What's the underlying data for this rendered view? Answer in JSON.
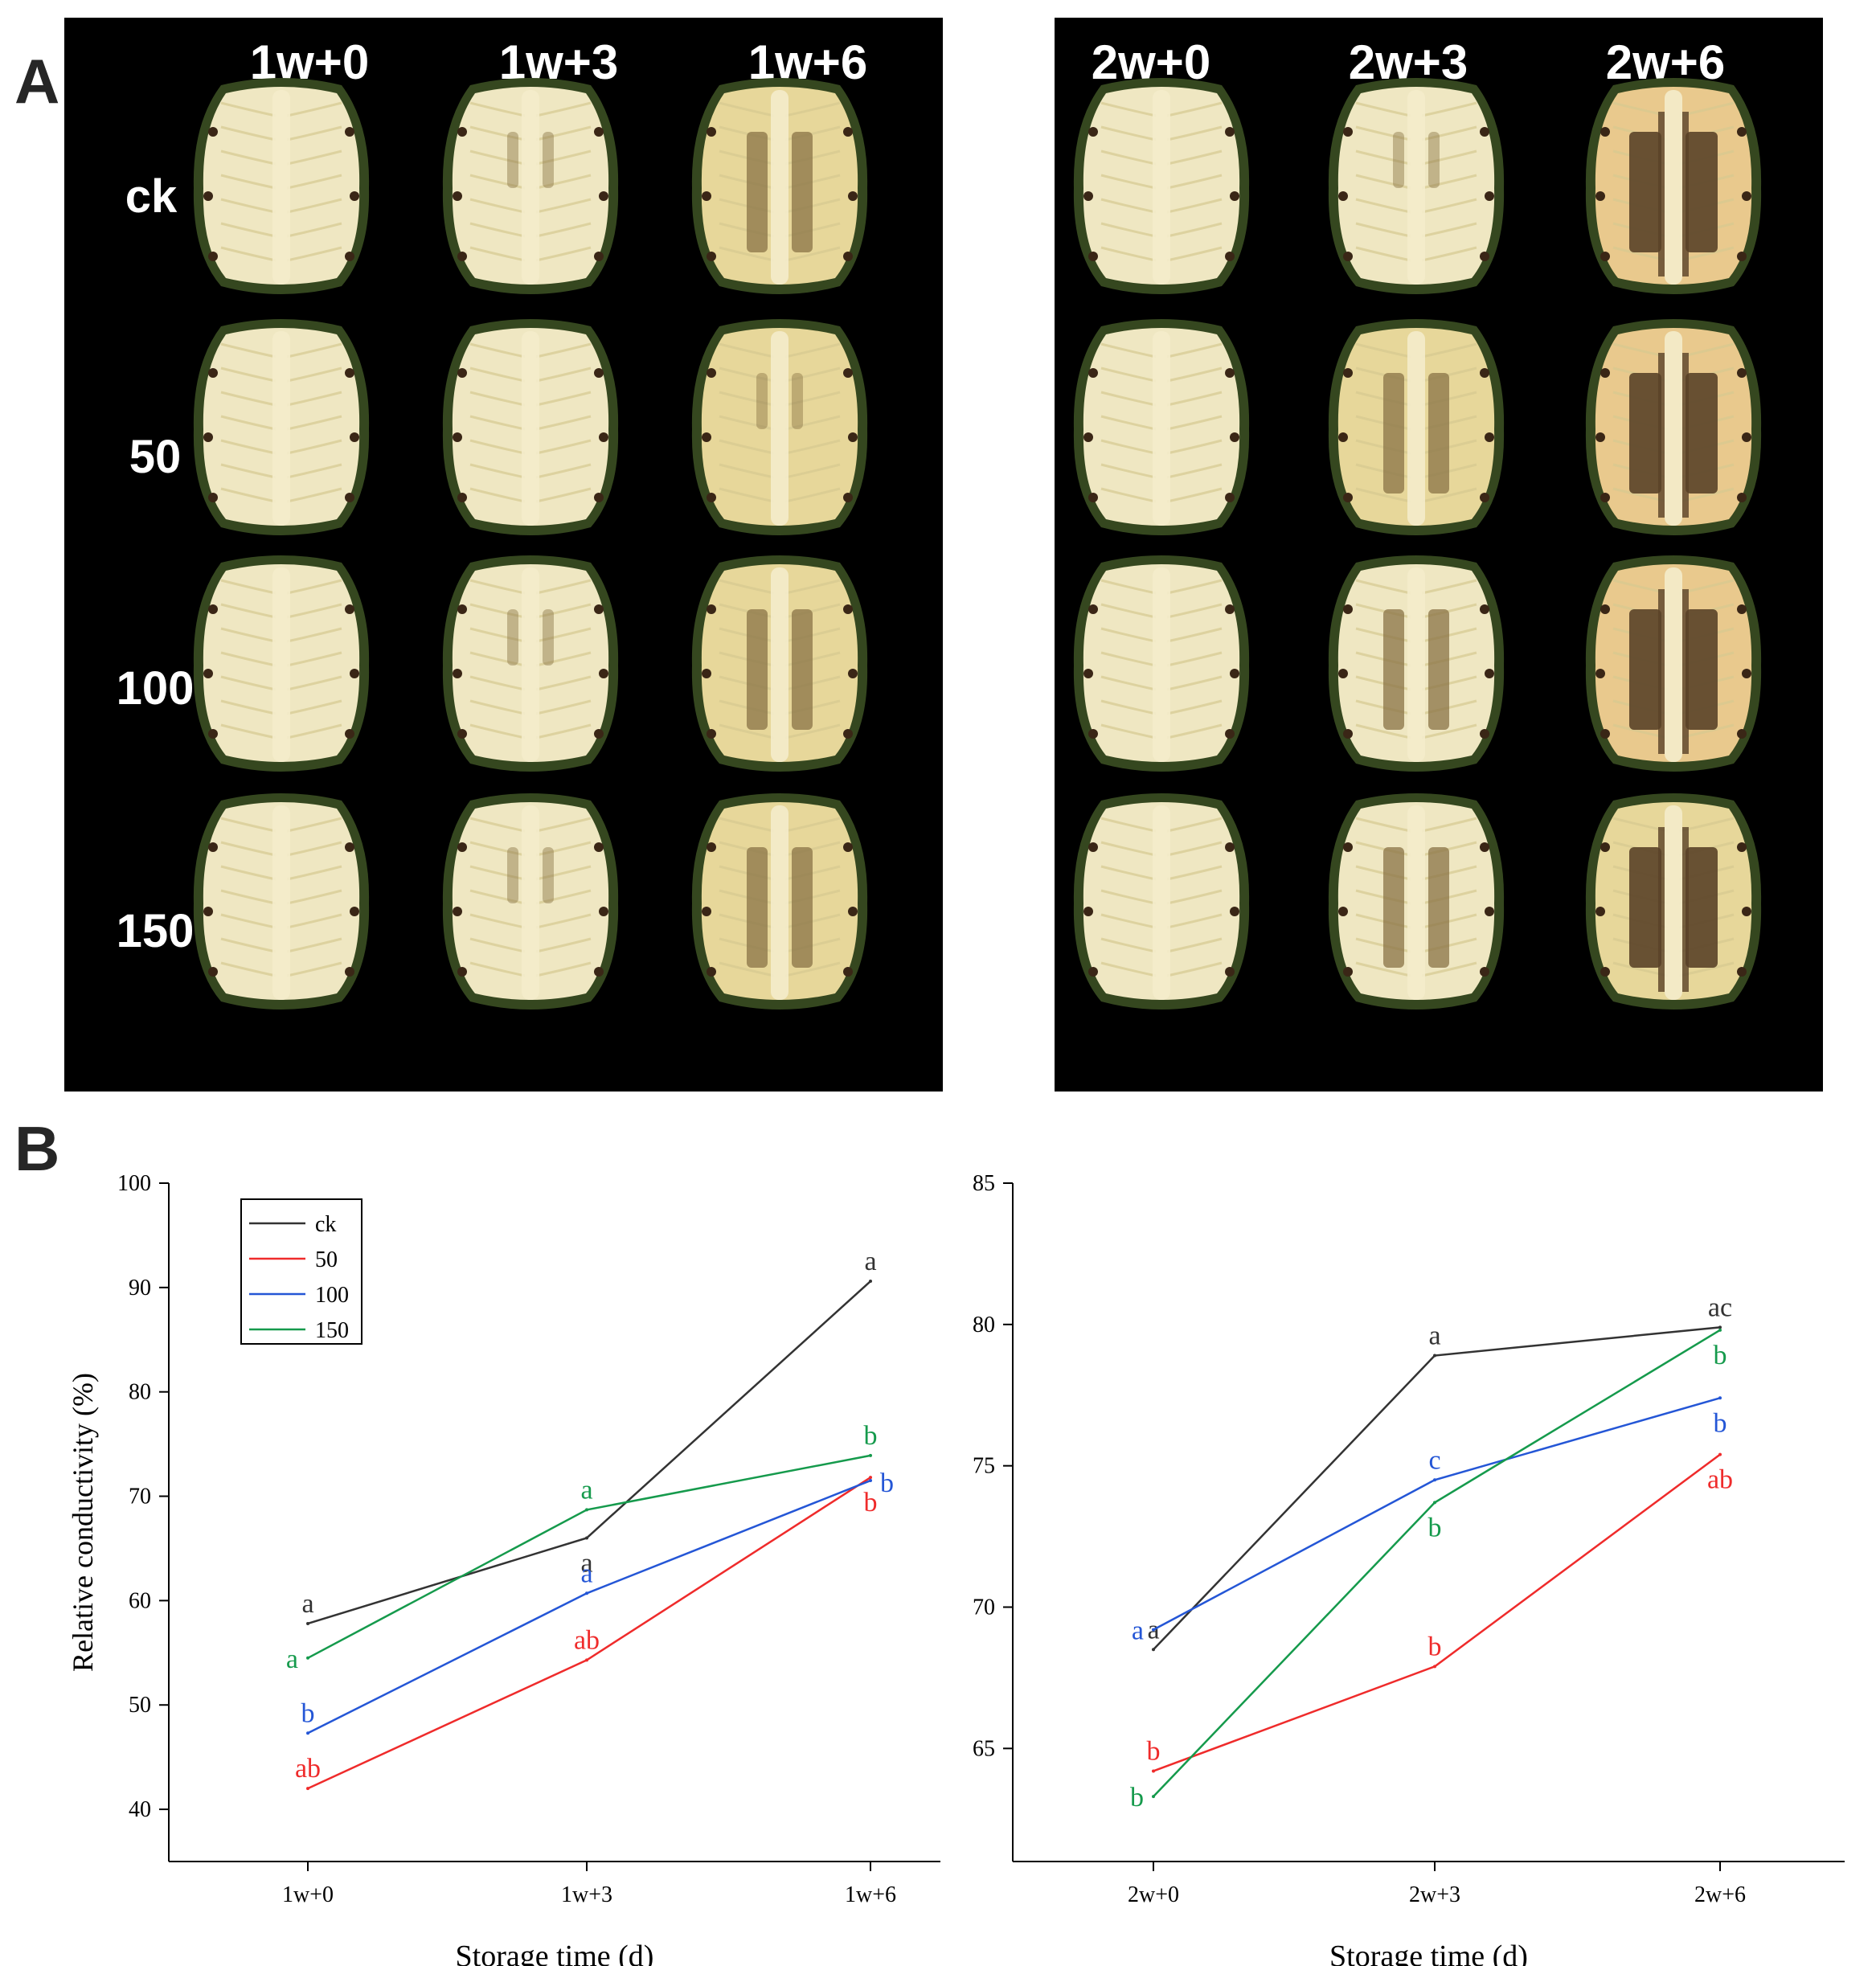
{
  "panel_a": {
    "letter": "A",
    "left_columns": [
      "1w+0",
      "1w+3",
      "1w+6"
    ],
    "right_columns": [
      "2w+0",
      "2w+3",
      "2w+6"
    ],
    "rows": [
      "ck",
      "50",
      "100",
      "150"
    ],
    "colors": {
      "background": "#000000",
      "rind": "#35471f",
      "pale_flesh": "#efe7c2",
      "yellow_flesh": "#e7d79a",
      "browning": "#8a7345",
      "severe_browning": "#5a4228",
      "golden_flesh": "#e9c98d"
    }
  },
  "panel_b": {
    "letter": "B",
    "colors": {
      "ck": "#333333",
      "50": "#ef2b2b",
      "100": "#2456d6",
      "150": "#159a4c"
    }
  },
  "chart_data": [
    {
      "type": "line",
      "xlabel": "Storage time (d)",
      "ylabel": "Relative conductivity (%)",
      "categories": [
        "1w+0",
        "1w+3",
        "1w+6"
      ],
      "ylim": [
        35,
        100
      ],
      "yticks": [
        40,
        50,
        60,
        70,
        80,
        90,
        100
      ],
      "legend": {
        "placement": "top-left",
        "entries": [
          "ck",
          "50",
          "100",
          "150"
        ]
      },
      "series": [
        {
          "name": "ck",
          "values": [
            57.8,
            66.0,
            90.6
          ],
          "labels": [
            "a",
            "a",
            "a"
          ],
          "label_pos": [
            "above",
            "below",
            "above"
          ]
        },
        {
          "name": "50",
          "values": [
            42.0,
            54.3,
            71.8
          ],
          "labels": [
            "ab",
            "ab",
            "b"
          ],
          "label_pos": [
            "above",
            "above",
            "below"
          ]
        },
        {
          "name": "100",
          "values": [
            47.3,
            60.7,
            71.5
          ],
          "labels": [
            "b",
            "a",
            "b"
          ],
          "label_pos": [
            "above",
            "above",
            "right"
          ]
        },
        {
          "name": "150",
          "values": [
            54.5,
            68.7,
            73.9
          ],
          "labels": [
            "a",
            "a",
            "b"
          ],
          "label_pos": [
            "left",
            "above",
            "above"
          ]
        }
      ]
    },
    {
      "type": "line",
      "xlabel": "Storage time (d)",
      "ylabel": "",
      "categories": [
        "2w+0",
        "2w+3",
        "2w+6"
      ],
      "ylim": [
        61,
        85
      ],
      "yticks": [
        65,
        70,
        75,
        80,
        85
      ],
      "series": [
        {
          "name": "ck",
          "values": [
            68.5,
            78.9,
            79.9
          ],
          "labels": [
            "a",
            "a",
            "ac"
          ],
          "label_pos": [
            "above",
            "above",
            "above"
          ]
        },
        {
          "name": "50",
          "values": [
            64.2,
            67.9,
            75.4
          ],
          "labels": [
            "b",
            "b",
            "ab"
          ],
          "label_pos": [
            "above",
            "above",
            "below"
          ]
        },
        {
          "name": "100",
          "values": [
            69.2,
            74.5,
            77.4
          ],
          "labels": [
            "a",
            "c",
            "b"
          ],
          "label_pos": [
            "left",
            "above",
            "below"
          ]
        },
        {
          "name": "150",
          "values": [
            63.3,
            73.7,
            79.8
          ],
          "labels": [
            "b",
            "b",
            "b"
          ],
          "label_pos": [
            "left",
            "below",
            "below"
          ]
        }
      ]
    }
  ]
}
